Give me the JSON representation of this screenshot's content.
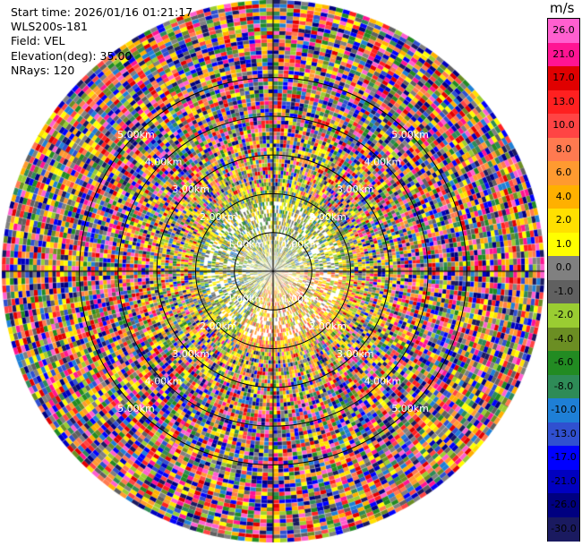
{
  "info": {
    "start_time": "Start time: 2026/01/16 01:21:17",
    "station": "WLS200s-181",
    "field": "Field: VEL",
    "elevation": "Elevation(deg): 35.00",
    "nrays": "NRays: 120"
  },
  "colorbar": {
    "unit": "m/s",
    "levels": [
      26.0,
      21.0,
      17.0,
      13.0,
      10.0,
      8.0,
      6.0,
      4.0,
      2.0,
      1.0,
      0.0,
      -1.0,
      -2.0,
      -4.0,
      -6.0,
      -8.0,
      -10.0,
      -13.0,
      -17.0,
      -21.0,
      -26.0,
      -30.0
    ],
    "labels": [
      "26.0",
      "21.0",
      "17.0",
      "13.0",
      "10.0",
      "8.0",
      "6.0",
      "4.0",
      "2.0",
      "1.0",
      "0.0",
      "-1.0",
      "-2.0",
      "-4.0",
      "-6.0",
      "-8.0",
      "-10.0",
      "-13.0",
      "-17.0",
      "-21.0",
      "-26.0",
      "-30.0"
    ],
    "colors": [
      "#ff5fcf",
      "#ff1493",
      "#e00000",
      "#ff2020",
      "#ff4444",
      "#ff7a50",
      "#ff9a30",
      "#ffb000",
      "#ffe000",
      "#ffff00",
      "#808080",
      "#606060",
      "#9acd32",
      "#6b8e23",
      "#228b22",
      "#2e8b57",
      "#1e7fd6",
      "#3050d0",
      "#0000ff",
      "#0000c0",
      "#000080",
      "#1a1a60"
    ]
  },
  "chart_data": {
    "type": "heatmap",
    "projection": "polar PPI",
    "field": "VEL",
    "units": "m/s",
    "nrays": 120,
    "range_rings_km": [
      {
        "label": "1.00km",
        "value": 1.0
      },
      {
        "label": "2.00km",
        "value": 2.0
      },
      {
        "label": "3.00km",
        "value": 3.0
      },
      {
        "label": "4.00km",
        "value": 4.0
      },
      {
        "label": "5.00km",
        "value": 5.0
      }
    ],
    "max_range_km": 7.0,
    "velocity_range": [
      -30.0,
      30.0
    ]
  }
}
